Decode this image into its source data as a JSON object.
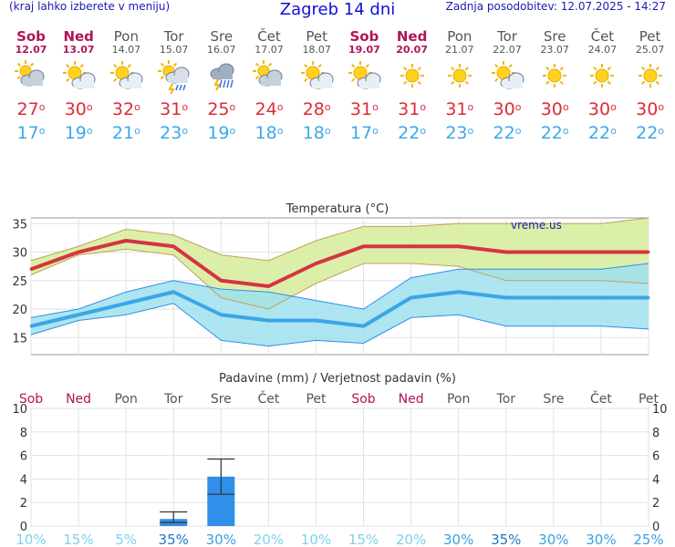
{
  "header": {
    "hint": "(kraj lahko izberete v meniju)",
    "title": "Zagreb 14 dni",
    "updated": "Zadnja posodobitev: 12.07.2025 - 14:27"
  },
  "days": [
    {
      "name": "Sob",
      "date": "12.07",
      "weekend": true,
      "icon": "partly-cloudy-icon",
      "max": "27",
      "min": "17"
    },
    {
      "name": "Ned",
      "date": "13.07",
      "weekend": true,
      "icon": "sun-cloud-icon",
      "max": "30",
      "min": "19"
    },
    {
      "name": "Pon",
      "date": "14.07",
      "weekend": false,
      "icon": "sun-cloud-icon",
      "max": "32",
      "min": "21"
    },
    {
      "name": "Tor",
      "date": "15.07",
      "weekend": false,
      "icon": "sun-storm-icon",
      "max": "31",
      "min": "23"
    },
    {
      "name": "Sre",
      "date": "16.07",
      "weekend": false,
      "icon": "storm-cloud-icon",
      "max": "25",
      "min": "19"
    },
    {
      "name": "Čet",
      "date": "17.07",
      "weekend": false,
      "icon": "partly-cloudy-icon",
      "max": "24",
      "min": "18"
    },
    {
      "name": "Pet",
      "date": "18.07",
      "weekend": false,
      "icon": "sun-cloud-icon",
      "max": "28",
      "min": "18"
    },
    {
      "name": "Sob",
      "date": "19.07",
      "weekend": true,
      "icon": "sun-cloud-icon",
      "max": "31",
      "min": "17"
    },
    {
      "name": "Ned",
      "date": "20.07",
      "weekend": true,
      "icon": "sun-icon",
      "max": "31",
      "min": "22"
    },
    {
      "name": "Pon",
      "date": "21.07",
      "weekend": false,
      "icon": "sun-icon",
      "max": "31",
      "min": "23"
    },
    {
      "name": "Tor",
      "date": "22.07",
      "weekend": false,
      "icon": "sun-cloud-icon",
      "max": "30",
      "min": "22"
    },
    {
      "name": "Sre",
      "date": "23.07",
      "weekend": false,
      "icon": "sun-icon",
      "max": "30",
      "min": "22"
    },
    {
      "name": "Čet",
      "date": "24.07",
      "weekend": false,
      "icon": "sun-icon",
      "max": "30",
      "min": "22"
    },
    {
      "name": "Pet",
      "date": "25.07",
      "weekend": false,
      "icon": "sun-icon",
      "max": "30",
      "min": "22"
    }
  ],
  "chart_data": [
    {
      "type": "line",
      "title": "Temperatura (°C)",
      "watermark": "vreme.us",
      "x": [
        "Sob",
        "Ned",
        "Pon",
        "Tor",
        "Sre",
        "Čet",
        "Pet",
        "Sob",
        "Ned",
        "Pon",
        "Tor",
        "Sre",
        "Čet",
        "Pet"
      ],
      "ylim": [
        12,
        36
      ],
      "yticks": [
        15,
        20,
        25,
        30,
        35
      ],
      "grid": true,
      "series": [
        {
          "values": [
            27,
            30,
            32,
            31,
            25,
            24,
            28,
            31,
            31,
            31,
            30,
            30,
            30,
            30
          ],
          "color": "#d63340"
        },
        {
          "values": [
            17,
            19,
            21,
            23,
            19,
            18,
            18,
            17,
            22,
            23,
            22,
            22,
            22,
            22
          ],
          "color": "#3aa6e8"
        }
      ],
      "max_band": {
        "upper": [
          28.5,
          31,
          34,
          33,
          29.5,
          28.5,
          32,
          34.5,
          34.5,
          35,
          35,
          35,
          35,
          36
        ],
        "lower": [
          26,
          29.5,
          30.5,
          29.5,
          22,
          20,
          24.5,
          28,
          28,
          27.5,
          25,
          25,
          25,
          24.5
        ],
        "color": "#d6ec9a"
      },
      "min_band": {
        "upper": [
          18.5,
          20,
          23,
          25,
          23.5,
          23,
          21.5,
          20,
          25.5,
          27,
          27,
          27,
          27,
          28
        ],
        "lower": [
          15.5,
          18,
          19,
          21,
          14.5,
          13.5,
          14.5,
          14,
          18.5,
          19,
          17,
          17,
          17,
          16.5
        ],
        "color": "#9fe1ef"
      }
    },
    {
      "type": "bar",
      "title": "Padavine (mm) / Verjetnost padavin (%)",
      "categories": [
        "Sob",
        "Ned",
        "Pon",
        "Tor",
        "Sre",
        "Čet",
        "Pet",
        "Sob",
        "Ned",
        "Pon",
        "Tor",
        "Sre",
        "Čet",
        "Pet"
      ],
      "values": [
        0,
        0,
        0,
        0.6,
        4.2,
        0,
        0,
        0,
        0,
        0,
        0,
        0,
        0,
        0
      ],
      "error_high": [
        0,
        0,
        0,
        1.2,
        5.7,
        0,
        0,
        0,
        0,
        0,
        0,
        0,
        0,
        0
      ],
      "error_low": [
        0,
        0,
        0,
        0.3,
        2.7,
        0,
        0,
        0,
        0,
        0,
        0,
        0,
        0,
        0
      ],
      "probability": [
        "10%",
        "15%",
        "5%",
        "35%",
        "30%",
        "20%",
        "10%",
        "15%",
        "20%",
        "30%",
        "35%",
        "30%",
        "30%",
        "25%"
      ],
      "ylim": [
        0,
        10
      ],
      "yticks": [
        0,
        2,
        4,
        6,
        8,
        10
      ],
      "bar_color": "#2f8fe9"
    }
  ]
}
